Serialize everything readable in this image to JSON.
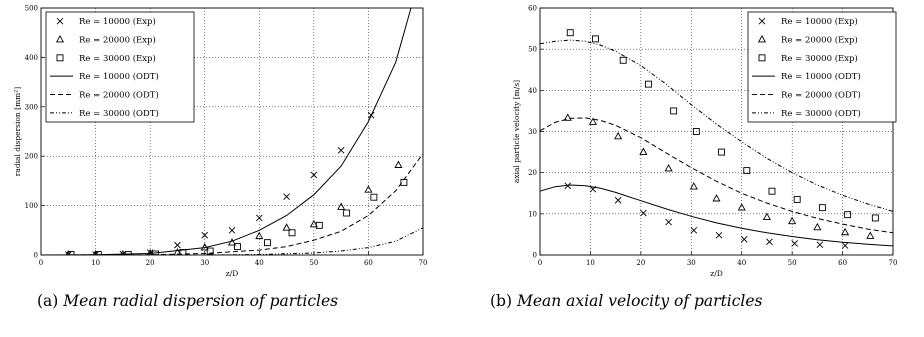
{
  "chart_data": [
    {
      "type": "scatter+line",
      "title": "",
      "xlabel": "z/D",
      "ylabel": "radial   dispersion   [mm²]",
      "xlim": [
        0,
        70
      ],
      "ylim": [
        0,
        500
      ],
      "x_ticks": [
        "0",
        "10",
        "20",
        "30",
        "40",
        "50",
        "60",
        "70"
      ],
      "y_ticks": [
        "0",
        "100",
        "200",
        "300",
        "400",
        "500"
      ],
      "grid": true,
      "legend_position": "top-left",
      "series": [
        {
          "name": "Re = 10000 (Exp)",
          "kind": "points",
          "marker": "cross",
          "x": [
            5,
            10,
            15,
            20,
            25,
            30,
            35,
            40,
            45,
            50,
            55,
            60.5
          ],
          "y": [
            1,
            1,
            2,
            5,
            20,
            40,
            50,
            75,
            118,
            162,
            212,
            283
          ]
        },
        {
          "name": "Re = 20000 (Exp)",
          "kind": "points",
          "marker": "triangle",
          "x": [
            5,
            10,
            15,
            20,
            25,
            30,
            35,
            40,
            45,
            50,
            55,
            60,
            65.5
          ],
          "y": [
            1,
            1,
            1,
            3,
            5,
            15,
            25,
            38,
            55,
            62,
            97,
            132,
            182
          ]
        },
        {
          "name": "Re = 30000 (Exp)",
          "kind": "points",
          "marker": "square",
          "x": [
            5.5,
            10.5,
            16,
            21,
            26,
            31,
            36,
            41.5,
            46,
            51,
            56,
            61,
            66.5
          ],
          "y": [
            1,
            1,
            1,
            2,
            5,
            8,
            17,
            25,
            45,
            60,
            85,
            117,
            147
          ]
        },
        {
          "name": "Re = 10000 (ODT)",
          "kind": "line",
          "dash": "solid",
          "x": [
            0,
            10,
            20,
            30,
            35,
            40,
            45,
            50,
            55,
            60,
            65,
            67.8
          ],
          "y": [
            0,
            0.5,
            3,
            15,
            28,
            50,
            80,
            122,
            180,
            270,
            390,
            500
          ]
        },
        {
          "name": "Re = 20000 (ODT)",
          "kind": "line",
          "dash": "dashed",
          "x": [
            0,
            20,
            30,
            40,
            45,
            50,
            55,
            60,
            65,
            70
          ],
          "y": [
            0,
            0.5,
            3,
            10,
            17,
            30,
            48,
            80,
            130,
            205
          ]
        },
        {
          "name": "Re = 30000 (ODT)",
          "kind": "line",
          "dash": "dashdotdot",
          "x": [
            0,
            30,
            40,
            50,
            55,
            60,
            65,
            70
          ],
          "y": [
            0,
            0,
            1,
            4,
            8,
            15,
            28,
            55
          ]
        }
      ],
      "caption": {
        "label": "(a)",
        "text": "Mean radial dispersion of particles"
      }
    },
    {
      "type": "scatter+line",
      "title": "",
      "xlabel": "z/D",
      "ylabel": "axial   particle   velocity   [m/s]",
      "xlim": [
        0,
        70
      ],
      "ylim": [
        0,
        60
      ],
      "x_ticks": [
        "0",
        "10",
        "20",
        "30",
        "40",
        "50",
        "60",
        "70"
      ],
      "y_ticks": [
        "0",
        "10",
        "20",
        "30",
        "40",
        "50",
        "60"
      ],
      "grid": true,
      "legend_position": "top-right",
      "series": [
        {
          "name": "Re = 10000 (Exp)",
          "kind": "points",
          "marker": "cross",
          "x": [
            5.5,
            10.5,
            15.5,
            20.5,
            25.5,
            30.5,
            35.5,
            40.5,
            45.5,
            50.5,
            55.5,
            60.5
          ],
          "y": [
            16.8,
            16.0,
            13.3,
            10.2,
            8.0,
            6.0,
            4.8,
            3.8,
            3.2,
            2.8,
            2.5,
            2.3
          ]
        },
        {
          "name": "Re = 20000 (Exp)",
          "kind": "points",
          "marker": "triangle",
          "x": [
            5.5,
            10.5,
            15.5,
            20.5,
            25.5,
            30.5,
            35,
            40,
            45,
            50,
            55,
            60.5,
            65.5
          ],
          "y": [
            33.3,
            32.3,
            28.8,
            25.0,
            21.0,
            16.6,
            13.7,
            11.5,
            9.2,
            8.2,
            6.7,
            5.5,
            4.6
          ]
        },
        {
          "name": "Re = 30000 (Exp)",
          "kind": "points",
          "marker": "square",
          "x": [
            6,
            11,
            16.5,
            21.5,
            26.5,
            31,
            36,
            41,
            46,
            51,
            56,
            61,
            66.5
          ],
          "y": [
            54.0,
            52.5,
            47.3,
            41.5,
            35.0,
            30.0,
            25.0,
            20.5,
            15.5,
            13.5,
            11.5,
            9.8,
            9.0
          ]
        },
        {
          "name": "Re = 10000 (ODT)",
          "kind": "line",
          "dash": "solid",
          "x": [
            0,
            3,
            6,
            9,
            12,
            15,
            20,
            25,
            30,
            35,
            40,
            45,
            50,
            55,
            60,
            65,
            70
          ],
          "y": [
            15.5,
            16.6,
            17.0,
            16.8,
            16.2,
            15.2,
            13.2,
            11.2,
            9.4,
            7.8,
            6.5,
            5.4,
            4.5,
            3.7,
            3.1,
            2.6,
            2.2
          ]
        },
        {
          "name": "Re = 20000 (ODT)",
          "kind": "line",
          "dash": "dashed",
          "x": [
            0,
            3,
            6,
            9,
            12,
            15,
            20,
            25,
            30,
            35,
            40,
            45,
            50,
            55,
            60,
            65,
            70
          ],
          "y": [
            30.2,
            32.2,
            33.2,
            33.3,
            32.7,
            31.5,
            28.5,
            24.8,
            21.2,
            17.9,
            15.0,
            12.6,
            10.6,
            8.9,
            7.5,
            6.3,
            5.4
          ]
        },
        {
          "name": "Re = 30000 (ODT)",
          "kind": "line",
          "dash": "dashdotdot",
          "x": [
            0,
            3,
            6,
            9,
            12,
            15,
            20,
            25,
            30,
            35,
            40,
            45,
            50,
            55,
            60,
            65,
            70
          ],
          "y": [
            51.3,
            51.9,
            52.2,
            51.9,
            51.0,
            49.5,
            46.0,
            41.5,
            36.5,
            31.8,
            27.5,
            23.5,
            20.0,
            17.0,
            14.5,
            12.4,
            10.6
          ]
        }
      ],
      "caption": {
        "label": "(b)",
        "text": "Mean axial velocity of particles"
      }
    }
  ]
}
